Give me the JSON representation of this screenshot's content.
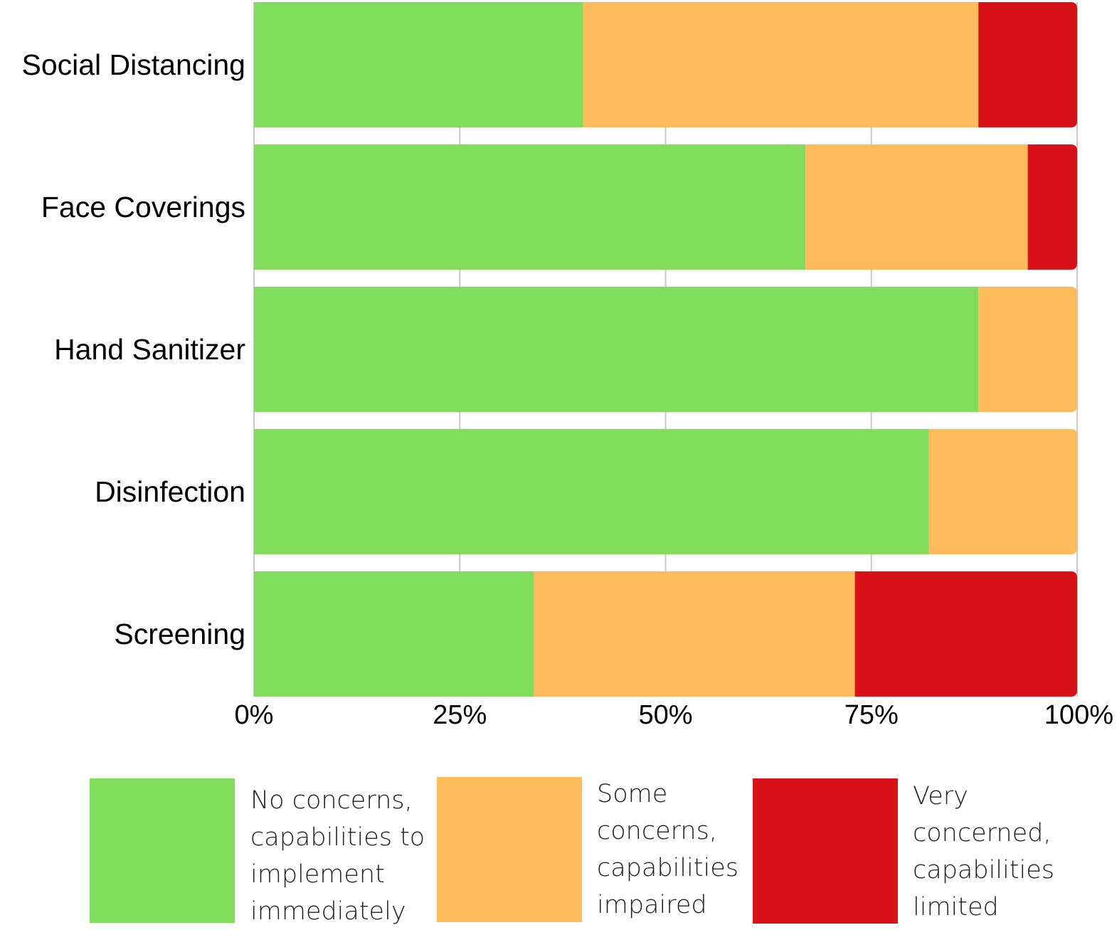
{
  "chart_data": {
    "type": "bar",
    "orientation": "horizontal",
    "stacked": true,
    "categories": [
      "Social Distancing",
      "Face Coverings",
      "Hand Sanitizer",
      "Disinfection",
      "Screening"
    ],
    "series": [
      {
        "name": "No concerns, capabilities to implement immediately",
        "color": "#80dc5a",
        "values": [
          40,
          67,
          88,
          82,
          34
        ]
      },
      {
        "name": "Some concerns, capabilities impaired",
        "color": "#fdbb5c",
        "values": [
          48,
          27,
          12,
          18,
          39
        ]
      },
      {
        "name": "Very concerned, capabilities limited",
        "color": "#d81218",
        "values": [
          12,
          6,
          0,
          0,
          27
        ]
      }
    ],
    "x_ticks": [
      "0%",
      "25%",
      "50%",
      "75%",
      "100%"
    ],
    "xlim": [
      0,
      100
    ],
    "grid": true,
    "legend_position": "bottom"
  },
  "legend": [
    {
      "lines": [
        "No concerns,",
        "capabilities to",
        "implement",
        "immediately"
      ]
    },
    {
      "lines": [
        "Some",
        "concerns,",
        "capabilities",
        "impaired"
      ]
    },
    {
      "lines": [
        "Very",
        "concerned,",
        "capabilities",
        "limited"
      ]
    }
  ]
}
